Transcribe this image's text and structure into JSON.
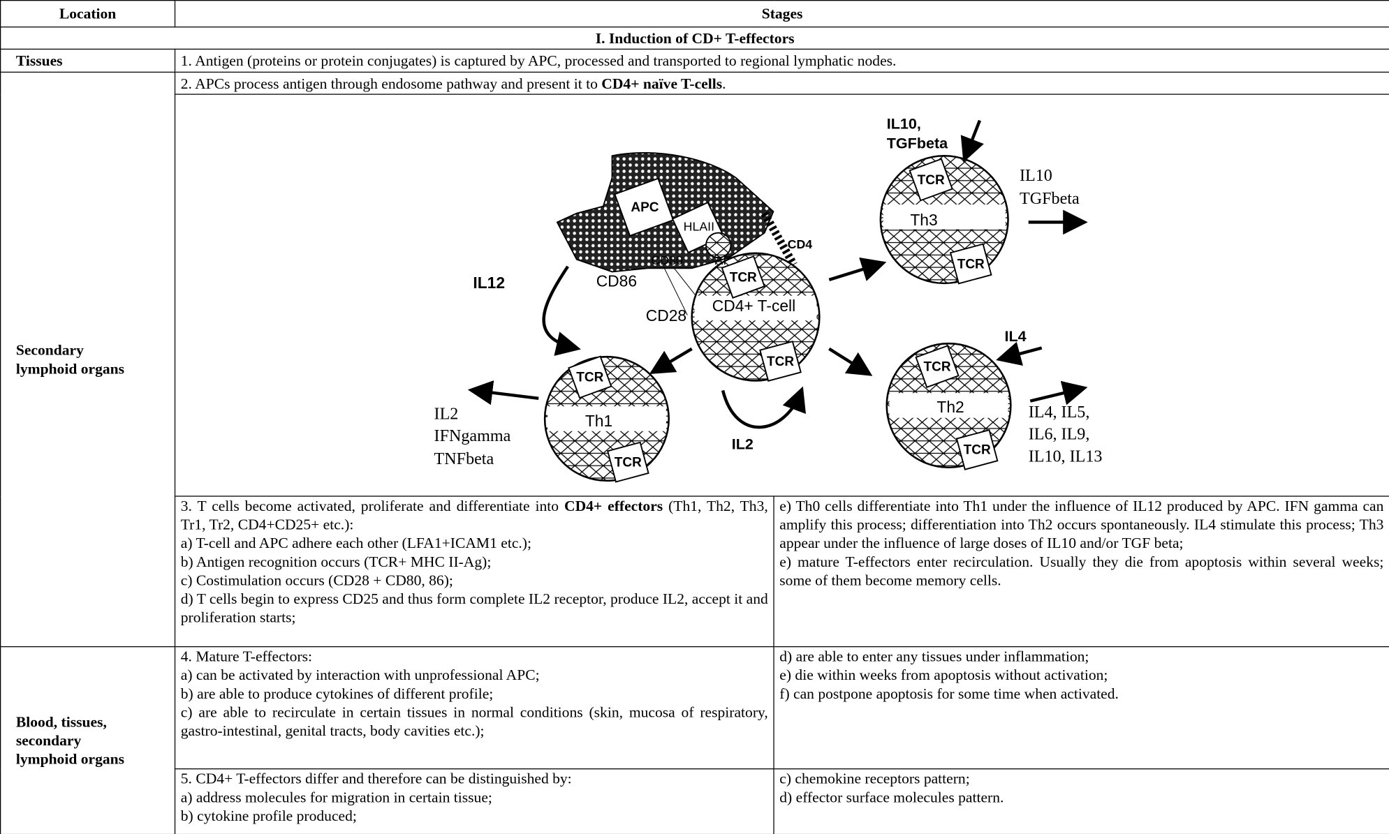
{
  "header": {
    "location": "Location",
    "stages": "Stages"
  },
  "section": "I. Induction of CD+ T-effectors",
  "row1": {
    "location": "Tissues",
    "text": "1. Antigen (proteins or protein conjugates) is captured by APC, processed and transported to regional lymphatic nodes."
  },
  "secondary": {
    "location_lines": [
      "Secondary",
      "lymphoid organs"
    ],
    "step2": [
      "2. APCs process antigen through endosome pathway and present it to ",
      "CD4+ naïve T-cells",
      "."
    ],
    "step3_intro": [
      "3. T cells become activated, proliferate and differentiate into ",
      "CD4+ effectors",
      " (Th1, Th2, Th3, Tr1, Tr2, CD4+CD25+ etc.):"
    ],
    "step3_items": [
      "a) T-cell and APC adhere each other (LFA1+ICAM1 etc.);",
      "b) Antigen recognition occurs (TCR+ MHC II-Ag);",
      "c) Costimulation occurs (CD28 + CD80, 86);",
      "d) T cells begin to express CD25 and thus form complete IL2 receptor, produce IL2, accept it and proliferation starts;"
    ],
    "step3_right": [
      "e) Th0 cells differentiate into Th1 under the influence of IL12 produced by APC. IFN gamma can amplify this process; differentiation into Th2 occurs spontaneously. IL4 stimulate this process; Th3 appear under the influence of large doses of IL10 and/or TGF beta;",
      "e) mature T-effectors enter recirculation. Usually they die from apoptosis within several weeks; some of them become memory cells."
    ]
  },
  "blood": {
    "location_lines": [
      "Blood, tissues,",
      "secondary",
      "lymphoid organs"
    ],
    "step4_left": [
      "4. Mature T-effectors:",
      "a) can be activated by interaction with unprofessional APC;",
      "b) are able to produce cytokines of different profile;",
      "c) are able to recirculate in certain tissues in normal conditions (skin, mucosa of respiratory, gastro-intestinal, genital tracts, body cavities etc.);"
    ],
    "step4_right": [
      "d) are able to enter any tissues under inflammation;",
      "e) die within weeks from apoptosis without activation;",
      "f) can postpone apoptosis for some time when activated."
    ],
    "step5_left": [
      "5. CD4+ T-effectors differ and therefore can be distinguished by:",
      "a) address molecules for migration in certain tissue;",
      "b) cytokine profile produced;"
    ],
    "step5_right": [
      "c) chemokine receptors pattern;",
      "d) effector surface molecules pattern."
    ]
  },
  "diagram": {
    "labels": [
      "IL10,",
      "TGFbeta",
      "IL10",
      "TGFbeta",
      "APC",
      "HLAII",
      "CD4",
      "CD80",
      "AГ",
      "IL12",
      "CD86",
      "TCR",
      "CD4+ T-cell",
      "CD28",
      "TCR",
      "TCR",
      "Th3",
      "TCR",
      "IL4",
      "TCR",
      "Th2",
      "TCR",
      "IL4, IL5,",
      "IL6, IL9,",
      "IL10, IL13",
      "TCR",
      "Th1",
      "TCR",
      "IL2",
      "IFNgamma",
      "TNFbeta",
      "IL2"
    ]
  }
}
